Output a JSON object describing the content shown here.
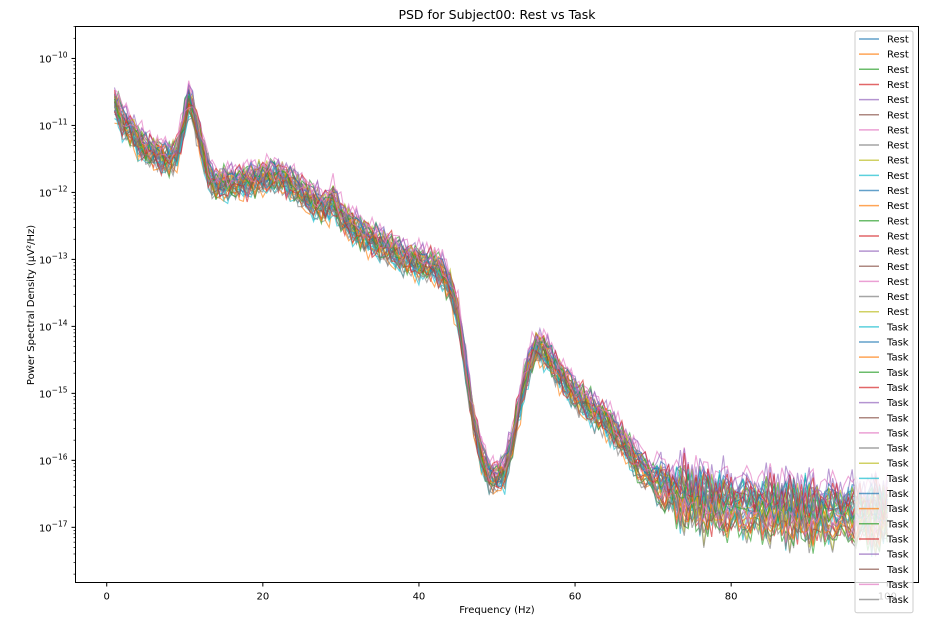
{
  "chart_data": {
    "type": "line",
    "title": "PSD for Subject00: Rest vs Task",
    "xlabel": "Frequency (Hz)",
    "ylabel": "Power Spectral Density (µV²/Hz)",
    "xlim": [
      -4,
      104
    ],
    "ylim": [
      1.5e-18,
      3e-10
    ],
    "yscale": "log",
    "xticks": [
      0,
      20,
      40,
      60,
      80,
      100
    ],
    "xtick_labels": [
      "0",
      "20",
      "40",
      "60",
      "80",
      "100"
    ],
    "yticks": [
      1e-10,
      1e-11,
      1e-12,
      1e-13,
      1e-14,
      1e-15,
      1e-16,
      1e-17
    ],
    "ytick_labels": [
      {
        "base": "10",
        "exp": "−10"
      },
      {
        "base": "10",
        "exp": "−11"
      },
      {
        "base": "10",
        "exp": "−12"
      },
      {
        "base": "10",
        "exp": "−13"
      },
      {
        "base": "10",
        "exp": "−14"
      },
      {
        "base": "10",
        "exp": "−15"
      },
      {
        "base": "10",
        "exp": "−16"
      },
      {
        "base": "10",
        "exp": "−17"
      }
    ],
    "grid": false,
    "legend_position": "top-right",
    "colors": [
      "#1f77b4",
      "#ff7f0e",
      "#2ca02c",
      "#d62728",
      "#9467bd",
      "#8c564b",
      "#e377c2",
      "#7f7f7f",
      "#bcbd22",
      "#17becf"
    ],
    "template_psd": {
      "x": [
        1,
        2,
        3,
        4,
        5,
        6,
        7,
        8,
        9,
        10,
        10.5,
        11,
        12,
        13,
        14,
        16,
        18,
        20,
        22,
        24,
        26,
        28,
        29,
        30,
        32,
        34,
        36,
        38,
        40,
        42,
        43,
        44,
        45,
        46,
        47,
        48,
        49,
        50,
        51,
        52,
        53,
        54,
        55,
        56,
        57,
        58,
        60,
        62,
        64,
        66,
        68,
        70,
        72,
        75,
        80,
        85,
        90,
        95,
        100
      ],
      "y": [
        2.2e-11,
        1.2e-11,
        9e-12,
        6e-12,
        4.5e-12,
        4e-12,
        3.5e-12,
        3.2e-12,
        4e-12,
        1.2e-11,
        2.5e-11,
        1.8e-11,
        6e-12,
        2e-12,
        1.3e-12,
        1.4e-12,
        1.5e-12,
        1.7e-12,
        1.8e-12,
        1.3e-12,
        8e-13,
        6e-13,
        8e-13,
        4.5e-13,
        2.8e-13,
        2e-13,
        1.5e-13,
        1.1e-13,
        9e-14,
        8e-14,
        6.5e-14,
        4e-14,
        1.5e-14,
        2.5e-15,
        4e-16,
        1.2e-16,
        6e-17,
        5.5e-17,
        7e-17,
        2e-16,
        8e-16,
        2.5e-15,
        5e-15,
        4.5e-15,
        3e-15,
        2e-15,
        1e-15,
        6e-16,
        4e-16,
        2e-16,
        9e-17,
        5e-17,
        3.5e-17,
        2.5e-17,
        2e-17,
        1.8e-17,
        1.6e-17,
        1.5e-17,
        1.4e-17
      ]
    },
    "series": [
      {
        "name": "Rest",
        "gain": 1.0
      },
      {
        "name": "Rest",
        "gain": 0.85
      },
      {
        "name": "Rest",
        "gain": 1.15
      },
      {
        "name": "Rest",
        "gain": 0.9
      },
      {
        "name": "Rest",
        "gain": 1.25
      },
      {
        "name": "Rest",
        "gain": 0.95
      },
      {
        "name": "Rest",
        "gain": 1.4
      },
      {
        "name": "Rest",
        "gain": 0.8
      },
      {
        "name": "Rest",
        "gain": 1.05
      },
      {
        "name": "Rest",
        "gain": 0.75
      },
      {
        "name": "Rest",
        "gain": 1.1
      },
      {
        "name": "Rest",
        "gain": 0.7
      },
      {
        "name": "Rest",
        "gain": 1.3
      },
      {
        "name": "Rest",
        "gain": 0.88
      },
      {
        "name": "Rest",
        "gain": 1.2
      },
      {
        "name": "Rest",
        "gain": 0.92
      },
      {
        "name": "Rest",
        "gain": 1.35
      },
      {
        "name": "Rest",
        "gain": 0.78
      },
      {
        "name": "Rest",
        "gain": 1.08
      },
      {
        "name": "Task",
        "gain": 0.72
      },
      {
        "name": "Task",
        "gain": 0.98
      },
      {
        "name": "Task",
        "gain": 1.18
      },
      {
        "name": "Task",
        "gain": 0.82
      },
      {
        "name": "Task",
        "gain": 1.28
      },
      {
        "name": "Task",
        "gain": 0.9
      },
      {
        "name": "Task",
        "gain": 1.02
      },
      {
        "name": "Task",
        "gain": 1.45
      },
      {
        "name": "Task",
        "gain": 0.76
      },
      {
        "name": "Task",
        "gain": 1.12
      },
      {
        "name": "Task",
        "gain": 0.86
      },
      {
        "name": "Task",
        "gain": 1.22
      },
      {
        "name": "Task",
        "gain": 0.94
      },
      {
        "name": "Task",
        "gain": 1.06
      },
      {
        "name": "Task",
        "gain": 0.8
      },
      {
        "name": "Task",
        "gain": 1.32
      },
      {
        "name": "Task",
        "gain": 0.9
      },
      {
        "name": "Task",
        "gain": 1.16
      },
      {
        "name": "Task",
        "gain": 0.84
      }
    ]
  }
}
